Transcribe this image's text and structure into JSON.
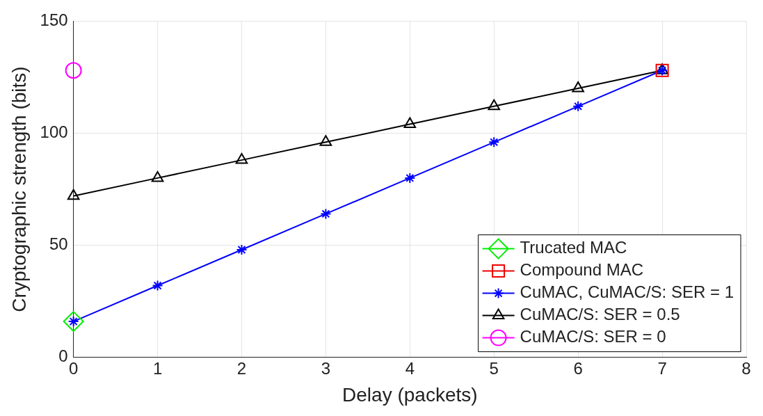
{
  "chart_data": {
    "type": "line",
    "xlabel": "Delay (packets)",
    "ylabel": "Cryptographic strength (bits)",
    "xlim": [
      0,
      8
    ],
    "ylim": [
      0,
      150
    ],
    "xticks": [
      0,
      1,
      2,
      3,
      4,
      5,
      6,
      7,
      8
    ],
    "yticks": [
      0,
      50,
      100,
      150
    ],
    "grid": true,
    "legend": "bottom right",
    "series": [
      {
        "name": "Trucated MAC",
        "color": "#00ee00",
        "type": "scatter",
        "marker": "diamond",
        "x": [
          0
        ],
        "values": [
          16
        ]
      },
      {
        "name": "Compound MAC",
        "color": "#ee0000",
        "type": "scatter",
        "marker": "square",
        "x": [
          7
        ],
        "values": [
          128
        ]
      },
      {
        "name": "CuMAC, CuMAC/S: SER = 1",
        "color": "#0000ff",
        "type": "line",
        "marker": "cross",
        "x": [
          0,
          1,
          2,
          3,
          4,
          5,
          6,
          7
        ],
        "values": [
          16,
          32,
          48,
          64,
          80,
          96,
          112,
          128
        ]
      },
      {
        "name": "CuMAC/S: SER = 0.5",
        "color": "#000000",
        "type": "line",
        "marker": "triangle",
        "x": [
          0,
          1,
          2,
          3,
          4,
          5,
          6,
          7
        ],
        "values": [
          72,
          80,
          88,
          96,
          104,
          112,
          120,
          128
        ]
      },
      {
        "name": "CuMAC/S: SER = 0",
        "color": "#ff00ff",
        "type": "scatter",
        "marker": "circle",
        "x": [
          0
        ],
        "values": [
          128
        ]
      }
    ]
  }
}
